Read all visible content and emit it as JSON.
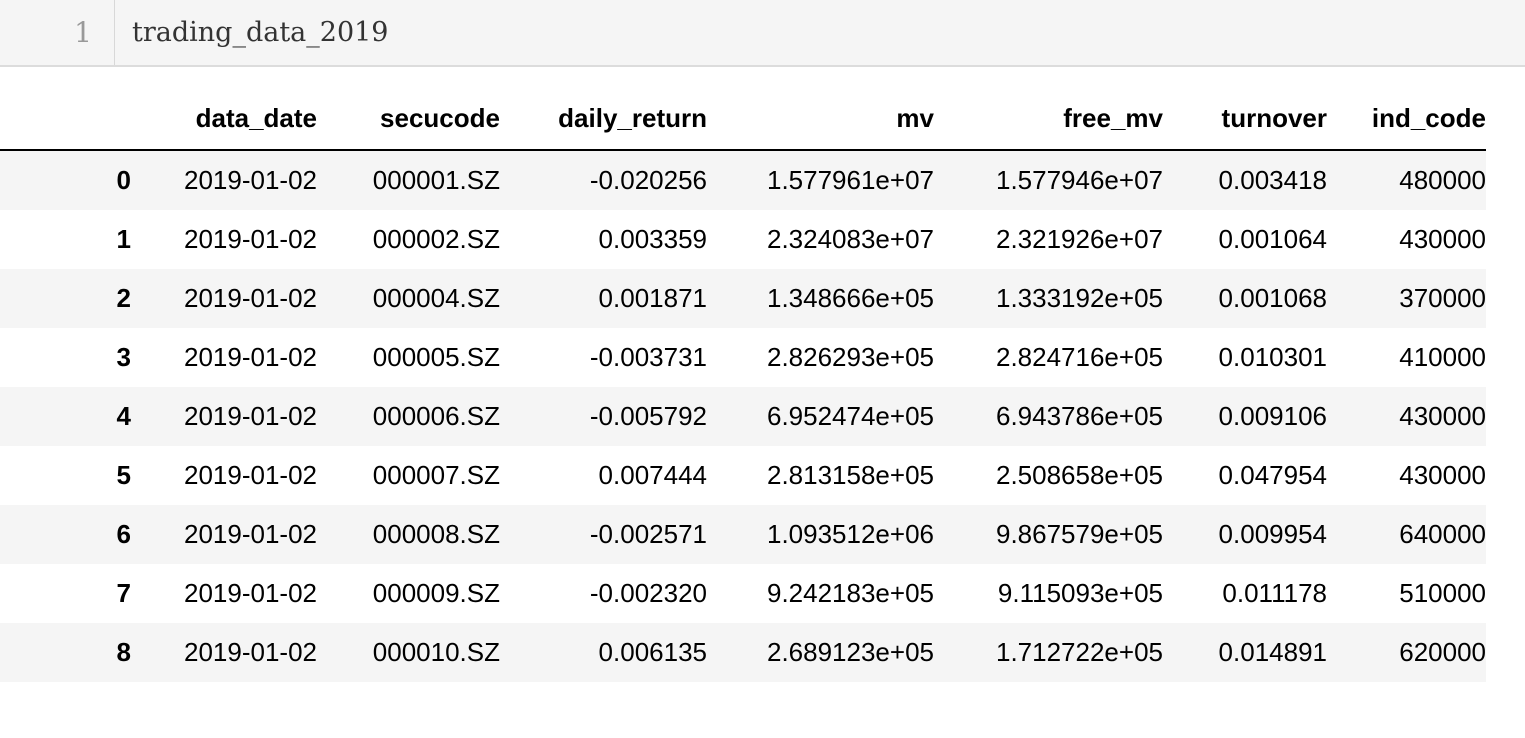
{
  "input_cell": {
    "line_number": "1",
    "code": "trading_data_2019"
  },
  "table": {
    "columns": [
      "",
      "data_date",
      "secucode",
      "daily_return",
      "mv",
      "free_mv",
      "turnover",
      "ind_code"
    ],
    "rows": [
      {
        "index": "0",
        "data_date": "2019-01-02",
        "secucode": "000001.SZ",
        "daily_return": "-0.020256",
        "mv": "1.577961e+07",
        "free_mv": "1.577946e+07",
        "turnover": "0.003418",
        "ind_code": "480000"
      },
      {
        "index": "1",
        "data_date": "2019-01-02",
        "secucode": "000002.SZ",
        "daily_return": "0.003359",
        "mv": "2.324083e+07",
        "free_mv": "2.321926e+07",
        "turnover": "0.001064",
        "ind_code": "430000"
      },
      {
        "index": "2",
        "data_date": "2019-01-02",
        "secucode": "000004.SZ",
        "daily_return": "0.001871",
        "mv": "1.348666e+05",
        "free_mv": "1.333192e+05",
        "turnover": "0.001068",
        "ind_code": "370000"
      },
      {
        "index": "3",
        "data_date": "2019-01-02",
        "secucode": "000005.SZ",
        "daily_return": "-0.003731",
        "mv": "2.826293e+05",
        "free_mv": "2.824716e+05",
        "turnover": "0.010301",
        "ind_code": "410000"
      },
      {
        "index": "4",
        "data_date": "2019-01-02",
        "secucode": "000006.SZ",
        "daily_return": "-0.005792",
        "mv": "6.952474e+05",
        "free_mv": "6.943786e+05",
        "turnover": "0.009106",
        "ind_code": "430000"
      },
      {
        "index": "5",
        "data_date": "2019-01-02",
        "secucode": "000007.SZ",
        "daily_return": "0.007444",
        "mv": "2.813158e+05",
        "free_mv": "2.508658e+05",
        "turnover": "0.047954",
        "ind_code": "430000"
      },
      {
        "index": "6",
        "data_date": "2019-01-02",
        "secucode": "000008.SZ",
        "daily_return": "-0.002571",
        "mv": "1.093512e+06",
        "free_mv": "9.867579e+05",
        "turnover": "0.009954",
        "ind_code": "640000"
      },
      {
        "index": "7",
        "data_date": "2019-01-02",
        "secucode": "000009.SZ",
        "daily_return": "-0.002320",
        "mv": "9.242183e+05",
        "free_mv": "9.115093e+05",
        "turnover": "0.011178",
        "ind_code": "510000"
      },
      {
        "index": "8",
        "data_date": "2019-01-02",
        "secucode": "000010.SZ",
        "daily_return": "0.006135",
        "mv": "2.689123e+05",
        "free_mv": "1.712722e+05",
        "turnover": "0.014891",
        "ind_code": "620000"
      }
    ]
  }
}
